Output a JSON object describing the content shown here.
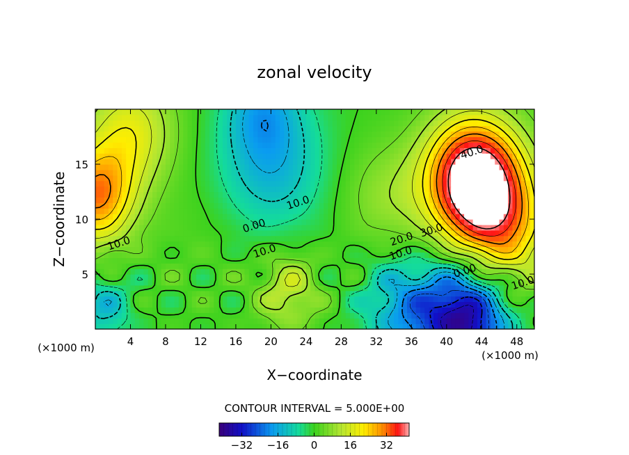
{
  "chart_data": {
    "type": "heatmap",
    "title": "zonal velocity",
    "xlabel": "X−coordinate",
    "ylabel": "Z−coordinate",
    "x_units_left": "(×1000 m)",
    "x_units_right": "(×1000 m)",
    "xlim": [
      0,
      50
    ],
    "ylim": [
      0,
      20
    ],
    "x_ticks": [
      4,
      8,
      12,
      16,
      20,
      24,
      28,
      32,
      36,
      40,
      44,
      48
    ],
    "y_ticks": [
      5,
      10,
      15
    ],
    "contour_interval_label": "CONTOUR INTERVAL = 5.000E+00",
    "contour_labels": [
      {
        "text": "40.0",
        "x": 43.0,
        "y": 15.8
      },
      {
        "text": "10.0",
        "x": 23.2,
        "y": 11.2
      },
      {
        "text": "0.00",
        "x": 18.2,
        "y": 9.1
      },
      {
        "text": "10.0",
        "x": 2.8,
        "y": 7.5
      },
      {
        "text": "10.0",
        "x": 19.4,
        "y": 6.8
      },
      {
        "text": "30.0",
        "x": 38.4,
        "y": 8.7
      },
      {
        "text": "20.0",
        "x": 35.0,
        "y": 7.9
      },
      {
        "text": "10.0",
        "x": 34.9,
        "y": 6.6
      },
      {
        "text": "0.00",
        "x": 42.2,
        "y": 5.0
      },
      {
        "text": "10.0",
        "x": 48.8,
        "y": 3.9
      }
    ],
    "colorbar": {
      "range": [
        -42,
        42
      ],
      "ticks": [
        -32,
        -16,
        0,
        16,
        32
      ],
      "tick_labels": [
        "−32",
        "−16",
        "0",
        "16",
        "32"
      ]
    },
    "field_centers": [
      {
        "x": 43,
        "y": 14,
        "v": 44,
        "r": 5.5
      },
      {
        "x": 46,
        "y": 9,
        "v": 25,
        "r": 6
      },
      {
        "x": 33,
        "y": 12,
        "v": 8,
        "r": 5
      },
      {
        "x": 0,
        "y": 12,
        "v": 30,
        "r": 4.5
      },
      {
        "x": 4,
        "y": 18,
        "v": 18,
        "r": 5
      },
      {
        "x": 20,
        "y": 15,
        "v": -14,
        "r": 6
      },
      {
        "x": 19,
        "y": 20,
        "v": -12,
        "r": 4
      },
      {
        "x": 42,
        "y": 1,
        "v": -40,
        "r": 5
      },
      {
        "x": 35,
        "y": 2,
        "v": -15,
        "r": 4.5
      },
      {
        "x": 1,
        "y": 2,
        "v": -12,
        "r": 3
      },
      {
        "x": 22,
        "y": 3.5,
        "v": 14,
        "r": 3.5
      },
      {
        "x": 12,
        "y": 8,
        "v": 2,
        "r": 6
      }
    ],
    "blank_region_above": 41
  }
}
